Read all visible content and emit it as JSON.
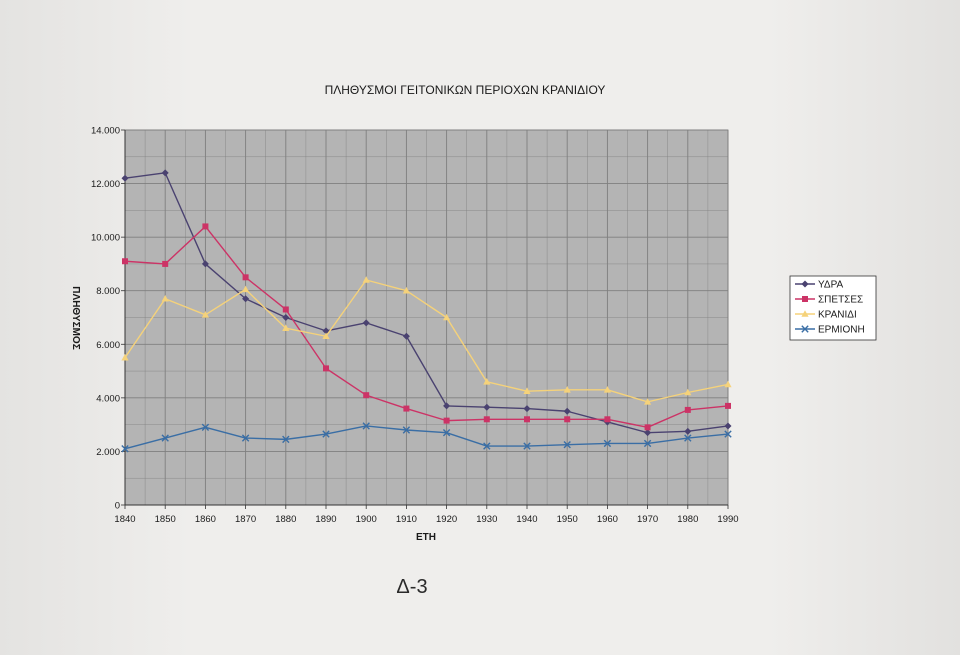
{
  "chart_data": {
    "type": "line",
    "title": "ΠΛΗΘΥΣΜΟΙ ΓΕΙΤΟΝΙΚΩΝ ΠΕΡΙΟΧΩΝ ΚΡΑΝΙΔΙΟΥ",
    "xlabel": "ΕΤΗ",
    "ylabel": "ΠΛΗΘΥΣΜΟΣ",
    "x": [
      1840,
      1850,
      1860,
      1870,
      1880,
      1890,
      1900,
      1910,
      1920,
      1930,
      1940,
      1950,
      1960,
      1970,
      1980,
      1990
    ],
    "x_tick_labels": [
      "1840",
      "1850",
      "1860",
      "1870",
      "1880",
      "1890",
      "1900",
      "1910",
      "1920",
      "1930",
      "1940",
      "1950",
      "1960",
      "1970",
      "1980",
      "1990"
    ],
    "y_ticks": [
      0,
      2000,
      4000,
      6000,
      8000,
      10000,
      12000,
      14000
    ],
    "y_tick_labels": [
      "0",
      "2.000",
      "4.000",
      "6.000",
      "8.000",
      "10.000",
      "12.000",
      "14.000"
    ],
    "ylim": [
      0,
      14000
    ],
    "grid": true,
    "legend_position": "right",
    "series": [
      {
        "name": "ΥΔΡΑ",
        "color": "#4a4270",
        "marker": "diamond",
        "values": [
          12200,
          12400,
          9000,
          7700,
          7000,
          6500,
          6800,
          6300,
          3700,
          3650,
          3600,
          3500,
          3100,
          2700,
          2750,
          2950
        ]
      },
      {
        "name": "ΣΠΕΤΣΕΣ",
        "color": "#cc3366",
        "marker": "square",
        "values": [
          9100,
          9000,
          10400,
          8500,
          7300,
          5100,
          4100,
          3600,
          3150,
          3200,
          3200,
          3200,
          3200,
          2900,
          3550,
          3700
        ]
      },
      {
        "name": "ΚΡΑΝΙΔΙ",
        "color": "#f5d27a",
        "marker": "triangle",
        "values": [
          5500,
          7700,
          7100,
          8050,
          6600,
          6300,
          8400,
          8000,
          7000,
          4600,
          4250,
          4300,
          4300,
          3850,
          4200,
          4500
        ]
      },
      {
        "name": "ΕΡΜΙΟΝΗ",
        "color": "#3a6ea5",
        "marker": "x",
        "values": [
          2100,
          2500,
          2900,
          2500,
          2450,
          2650,
          2950,
          2800,
          2700,
          2200,
          2200,
          2250,
          2300,
          2300,
          2500,
          2650
        ]
      }
    ]
  },
  "page_mark": "Δ-3",
  "colors": {
    "plot_background": "#b4b4b4",
    "grid": "#7f7f7f",
    "page_background": "#efeeec"
  }
}
